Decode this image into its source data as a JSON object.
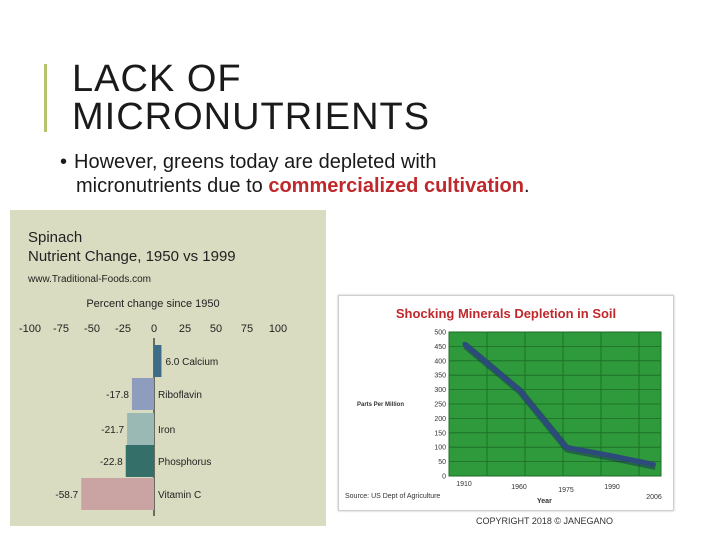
{
  "slide": {
    "title_line1": "LACK OF",
    "title_line2": "MICRONUTRIENTS",
    "bullet_dot": "•",
    "bullet_part1": "However, greens today are depleted with",
    "bullet_part2": "micronutrients due to ",
    "bullet_highlight": "commercialized cultivation",
    "bullet_end": ".",
    "footer": "COPYRIGHT 2018 © JANEGANO",
    "accent_color": "#b6c46f",
    "highlight_color": "#c0282b"
  },
  "chart_data": [
    {
      "type": "bar",
      "orientation": "horizontal",
      "title_line1": "Spinach",
      "title_line2": "Nutrient Change, 1950 vs 1999",
      "subtitle": "www.Traditional-Foods.com",
      "xlabel": "Percent change since 1950",
      "xlim": [
        -100,
        100
      ],
      "xticks": [
        -100,
        -75,
        -50,
        -25,
        0,
        25,
        50,
        75,
        100
      ],
      "categories": [
        "Calcium",
        "Riboflavin",
        "Iron",
        "Phosphorus",
        "Vitamin C"
      ],
      "values": [
        6.0,
        -17.8,
        -21.7,
        -22.8,
        -58.7
      ],
      "value_labels": [
        "6.0",
        "-17.8",
        "-21.7",
        "-22.8",
        "-58.7"
      ],
      "colors": [
        "#3e6b86",
        "#8e9dbd",
        "#9bb9b4",
        "#346f6a",
        "#c9a4a3"
      ]
    },
    {
      "type": "line",
      "title": "Shocking Minerals Depletion in Soil",
      "ylabel": "Parts Per Million",
      "xlabel": "Year",
      "source": "Source: US Dept of Agriculture",
      "ylim": [
        0,
        500
      ],
      "yticks": [
        0,
        50,
        100,
        150,
        200,
        250,
        300,
        350,
        400,
        450,
        500
      ],
      "xtick_labels": [
        "1910",
        "1960",
        "1975",
        "1990",
        "2006"
      ],
      "series": [
        {
          "x": [
            1910,
            1960,
            1975,
            1990,
            2006
          ],
          "y": [
            460,
            300,
            100,
            70,
            40
          ]
        }
      ],
      "grid": true,
      "background_color": "#2e9a3b",
      "line_color": "#2c4a7c"
    }
  ]
}
